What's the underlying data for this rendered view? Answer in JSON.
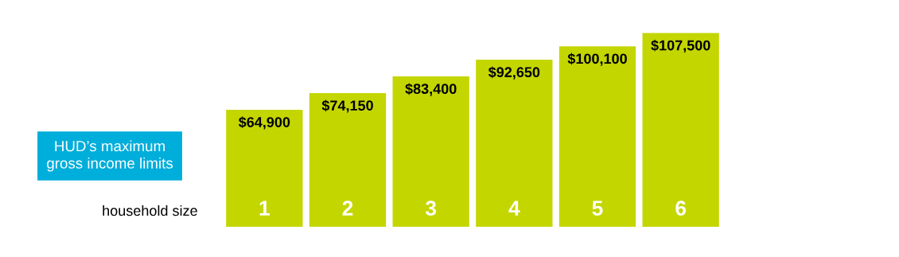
{
  "chart_data": {
    "type": "bar",
    "title": "HUD’s maximum\ngross income limits",
    "xlabel": "household size",
    "categories": [
      "1",
      "2",
      "3",
      "4",
      "5",
      "6"
    ],
    "values": [
      64900,
      74150,
      83400,
      92650,
      100100,
      107500
    ],
    "value_labels": [
      "$64,900",
      "$74,150",
      "$83,400",
      "$92,650",
      "$100,100",
      "$107,500"
    ],
    "color": "#c4d600",
    "tick_labels": false
  }
}
